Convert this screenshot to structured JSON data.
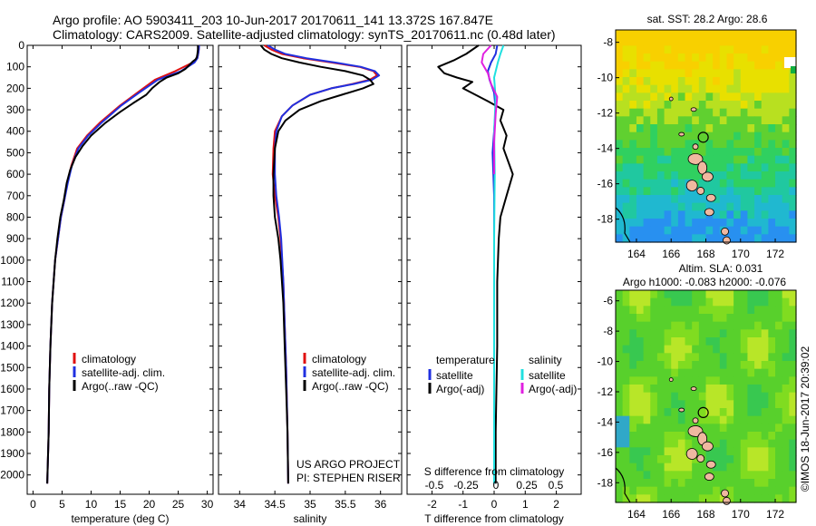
{
  "header": {
    "line1": "Argo profile: AO 5903411_203 10-Jun-2017 20170611_141 13.372S 167.847E",
    "line2": "Climatology: CARS2009. Satellite-adjusted climatology: synTS_20170611.nc (0.48d later)"
  },
  "colors": {
    "climatology": "#e01010",
    "satellite": "#2030e0",
    "argo": "#000000",
    "sat_sal": "#20e0e0",
    "argo_sal": "#e020e0"
  },
  "chart_data": [
    {
      "type": "line",
      "panel": "temperature",
      "xlabel": "temperature (deg C)",
      "ylabel": "",
      "xlim": [
        -1,
        31
      ],
      "ylim": [
        2090,
        0
      ],
      "xticks": [
        0,
        5,
        10,
        15,
        20,
        25,
        30
      ],
      "yticks": [
        0,
        100,
        200,
        300,
        400,
        500,
        600,
        700,
        800,
        900,
        1000,
        1100,
        1200,
        1300,
        1400,
        1500,
        1600,
        1700,
        1800,
        1900,
        2000
      ],
      "legend": [
        "climatology",
        "satellite-adj. clim.",
        "Argo(..raw -QC)"
      ],
      "series": [
        {
          "name": "climatology",
          "color": "#e01010",
          "x": [
            28.6,
            28.5,
            28.3,
            27.5,
            24.5,
            21,
            18,
            15,
            11.5,
            9.3,
            7.6,
            6.6,
            5.9,
            5.4,
            4.8,
            4.3,
            3.8,
            3.3,
            3.0,
            2.8,
            2.7,
            2.55,
            2.45
          ],
          "y": [
            0,
            30,
            60,
            80,
            120,
            160,
            220,
            280,
            360,
            420,
            480,
            560,
            640,
            720,
            800,
            900,
            1000,
            1200,
            1400,
            1600,
            1800,
            1950,
            2040
          ]
        },
        {
          "name": "satellite-adj. clim.",
          "color": "#2030e0",
          "x": [
            28.6,
            28.5,
            28.3,
            27.8,
            25.5,
            21.5,
            18.3,
            15.2,
            11.8,
            9.5,
            7.8,
            6.7,
            6.0,
            5.4,
            4.8,
            4.3,
            3.8,
            3.3,
            3.0,
            2.8,
            2.7,
            2.55,
            2.45
          ],
          "y": [
            0,
            30,
            60,
            80,
            120,
            160,
            220,
            280,
            360,
            420,
            480,
            560,
            640,
            720,
            800,
            900,
            1000,
            1200,
            1400,
            1600,
            1800,
            1950,
            2040
          ]
        },
        {
          "name": "Argo(..raw -QC)",
          "color": "#000000",
          "x": [
            28.4,
            28.4,
            28.3,
            28.2,
            28.0,
            27.5,
            26.8,
            26.2,
            25.0,
            23.0,
            21.8,
            20.5,
            19.5,
            17.2,
            15.0,
            12.5,
            10.0,
            8.5,
            7.3,
            6.4,
            5.8,
            5.3,
            4.7,
            4.2,
            3.8,
            3.3,
            3.0,
            2.8,
            2.7,
            2.55,
            2.45
          ],
          "y": [
            0,
            20,
            40,
            55,
            65,
            75,
            95,
            110,
            130,
            150,
            170,
            200,
            230,
            270,
            310,
            360,
            420,
            470,
            520,
            580,
            640,
            720,
            800,
            900,
            1000,
            1200,
            1400,
            1600,
            1800,
            1950,
            2040
          ]
        }
      ]
    },
    {
      "type": "line",
      "panel": "salinity",
      "xlabel": "salinity",
      "xlim": [
        33.7,
        36.3
      ],
      "ylim": [
        2090,
        0
      ],
      "xticks": [
        34,
        34.5,
        35,
        35.5,
        36
      ],
      "legend": [
        "climatology",
        "satellite-adj. clim.",
        "Argo(..raw -QC)"
      ],
      "annotation": [
        "US ARGO PROJECT",
        "PI: STEPHEN RISER"
      ],
      "series": [
        {
          "name": "climatology",
          "color": "#e01010",
          "x": [
            34.35,
            34.45,
            34.6,
            34.9,
            35.3,
            35.7,
            35.9,
            35.95,
            35.85,
            35.6,
            35.3,
            35.0,
            34.75,
            34.6,
            34.5,
            34.48,
            34.47,
            34.5,
            34.55,
            34.58,
            34.62,
            34.64,
            34.66,
            34.68,
            34.69
          ],
          "y": [
            0,
            20,
            40,
            60,
            80,
            100,
            120,
            140,
            160,
            180,
            200,
            230,
            280,
            330,
            400,
            480,
            600,
            700,
            800,
            900,
            1100,
            1300,
            1500,
            1800,
            2040
          ]
        },
        {
          "name": "satellite-adj. clim.",
          "color": "#2030e0",
          "x": [
            34.4,
            34.5,
            34.65,
            34.95,
            35.35,
            35.72,
            35.92,
            35.98,
            35.88,
            35.62,
            35.3,
            35.0,
            34.75,
            34.6,
            34.52,
            34.5,
            34.5,
            34.52,
            34.56,
            34.59,
            34.62,
            34.64,
            34.66,
            34.68,
            34.69
          ],
          "y": [
            0,
            20,
            40,
            60,
            80,
            100,
            120,
            140,
            160,
            180,
            200,
            230,
            280,
            330,
            400,
            480,
            600,
            700,
            800,
            900,
            1100,
            1300,
            1500,
            1800,
            2040
          ]
        },
        {
          "name": "Argo(..raw -QC)",
          "color": "#000000",
          "x": [
            34.3,
            34.35,
            34.45,
            34.6,
            34.85,
            35.15,
            35.5,
            35.75,
            35.85,
            35.9,
            35.75,
            35.45,
            35.15,
            34.85,
            34.65,
            34.55,
            34.5,
            34.48,
            34.48,
            34.5,
            34.55,
            34.58,
            34.62,
            34.64,
            34.66,
            34.68,
            34.69
          ],
          "y": [
            0,
            20,
            40,
            60,
            80,
            100,
            120,
            140,
            160,
            180,
            200,
            230,
            260,
            300,
            350,
            400,
            480,
            600,
            700,
            800,
            900,
            1000,
            1200,
            1400,
            1600,
            1800,
            2040
          ]
        }
      ]
    },
    {
      "type": "line",
      "panel": "difference",
      "xlabel": "T difference from climatology",
      "xlabel_top": "S difference from climatology",
      "xlim": [
        -2.8,
        2.8
      ],
      "ylim": [
        2090,
        0
      ],
      "xticks": [
        -2,
        -1,
        0,
        1,
        2
      ],
      "xtick_labels_top": [
        "-0.5",
        "-0.25",
        "0",
        "0.25",
        "0.5"
      ],
      "legend_left": {
        "heading": "temperature",
        "items": [
          "satellite",
          "Argo(-adj)"
        ]
      },
      "legend_right": {
        "heading": "salinity",
        "items": [
          "satellite",
          "Argo(-adj)"
        ]
      },
      "series": [
        {
          "name": "temperature satellite",
          "color": "#2030e0",
          "x": [
            0.1,
            0.05,
            -0.1,
            -0.2,
            -0.15,
            0.0,
            0.05,
            0.0,
            -0.05,
            0.0,
            0.0,
            0.0,
            0.0
          ],
          "y": [
            0,
            40,
            80,
            120,
            160,
            220,
            300,
            400,
            500,
            700,
            1000,
            1500,
            2040
          ]
        },
        {
          "name": "temperature Argo(-adj)",
          "color": "#000000",
          "x": [
            -0.5,
            -0.9,
            -1.3,
            -1.8,
            -1.6,
            -1.2,
            -0.7,
            -1.0,
            -0.6,
            -0.2,
            0.3,
            0.2,
            0.4,
            0.3,
            0.6,
            0.4,
            0.2,
            0.15,
            0.1,
            0.1,
            0.05,
            0.05
          ],
          "y": [
            0,
            40,
            70,
            100,
            130,
            150,
            170,
            200,
            230,
            260,
            300,
            350,
            420,
            480,
            600,
            700,
            800,
            900,
            1100,
            1400,
            1800,
            2040
          ]
        },
        {
          "name": "salinity satellite",
          "color": "#20e0e0",
          "x": [
            0.3,
            0.2,
            0.12,
            0.0,
            0.05,
            0.0,
            0.02,
            0.0,
            0.0,
            0.0
          ],
          "y": [
            0,
            40,
            80,
            150,
            250,
            400,
            600,
            900,
            1400,
            2040
          ]
        },
        {
          "name": "salinity Argo(-adj)",
          "color": "#e020e0",
          "x": [
            -0.1,
            -0.35,
            -0.4,
            -0.2,
            -0.1,
            0.1,
            0.05,
            0.0,
            0.0
          ],
          "y": [
            0,
            40,
            80,
            130,
            180,
            240,
            320,
            450,
            600
          ]
        }
      ]
    },
    {
      "type": "heatmap",
      "panel": "sst_map",
      "title": "sat. SST: 28.2 Argo: 28.6",
      "xticks": [
        164,
        166,
        168,
        170,
        172
      ],
      "yticks": [
        -8,
        -10,
        -12,
        -14,
        -16,
        -18
      ]
    },
    {
      "type": "heatmap",
      "panel": "sla_map",
      "title_lines": [
        "Altim. SLA: 0.031",
        "Argo h1000: -0.083 h2000: -0.076"
      ],
      "xticks": [
        164,
        166,
        168,
        170,
        172
      ],
      "yticks": [
        -6,
        -8,
        -10,
        -12,
        -14,
        -16,
        -18
      ]
    }
  ],
  "footer": {
    "credit": "©IMOS 18-Jun-2017 20:39:02"
  }
}
